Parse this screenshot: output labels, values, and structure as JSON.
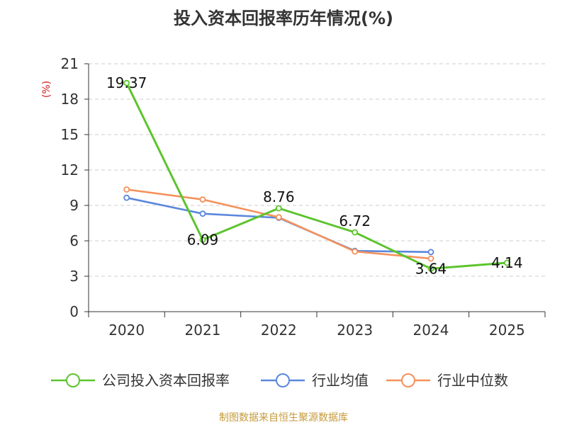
{
  "chart_data": {
    "type": "line",
    "title": "投入资本回报率历年情况(%)",
    "unit_label": "(%)",
    "categories": [
      "2020",
      "2021",
      "2022",
      "2023",
      "2024",
      "2025"
    ],
    "ylim": [
      0,
      21
    ],
    "yticks": [
      0,
      3,
      6,
      9,
      12,
      15,
      18,
      21
    ],
    "grid": true,
    "legend_position": "bottom",
    "series": [
      {
        "name": "公司投入资本回报率",
        "color": "#5cc42d",
        "values": [
          19.37,
          6.09,
          8.76,
          6.72,
          3.64,
          4.14
        ],
        "labels": [
          "19.37",
          "6.09",
          "8.76",
          "6.72",
          "3.64",
          "4.14"
        ]
      },
      {
        "name": "行业均值",
        "color": "#5b87dc",
        "values": [
          9.65,
          8.3,
          7.95,
          5.15,
          5.05,
          null
        ]
      },
      {
        "name": "行业中位数",
        "color": "#f4915b",
        "values": [
          10.35,
          9.5,
          8.0,
          5.1,
          4.5,
          null
        ]
      }
    ],
    "source": "制图数据来自恒生聚源数据库"
  }
}
